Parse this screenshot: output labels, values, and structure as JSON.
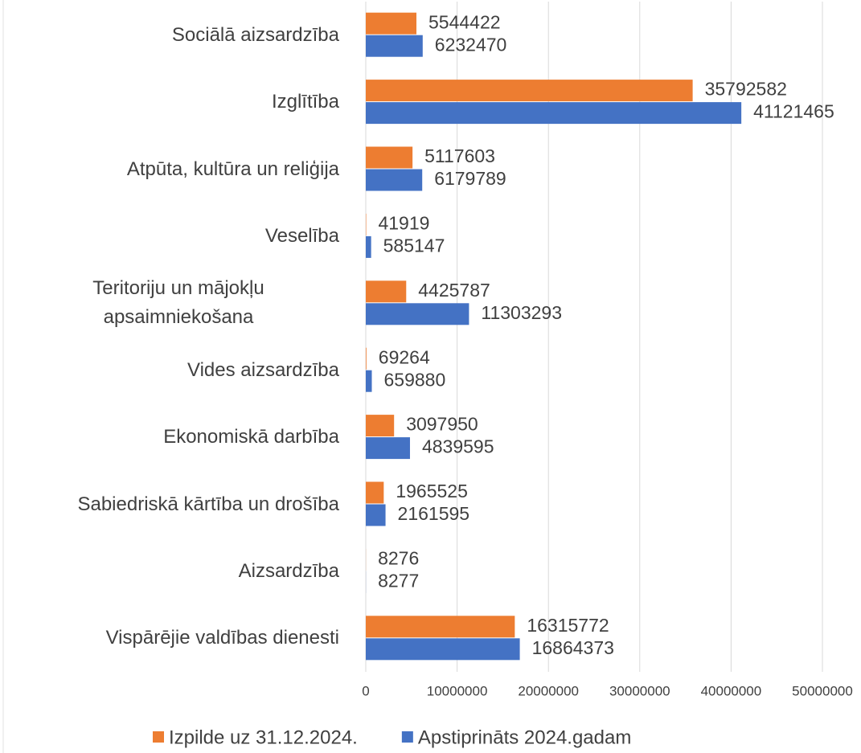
{
  "chart_data": {
    "type": "hbar",
    "categories": [
      "Sociālā aizsardzība",
      "Izglītība",
      "Atpūta, kultūra un reliģija",
      "Veselība",
      "Teritoriju un mājokļu apsaimniekošana",
      "Vides aizsardzība",
      "Ekonomiskā darbība",
      "Sabiedriskā kārtība un drošība",
      "Aizsardzība",
      "Vispārējie valdības dienesti"
    ],
    "series": [
      {
        "name": "Izpilde uz 31.12.2024.",
        "color": "#ed7d31",
        "values": [
          5544422,
          35792582,
          5117603,
          41919,
          4425787,
          69264,
          3097950,
          1965525,
          8276,
          16315772
        ]
      },
      {
        "name": "Apstiprināts 2024.gadam",
        "color": "#4472c4",
        "values": [
          6232470,
          41121465,
          6179789,
          585147,
          11303293,
          659880,
          4839595,
          2161595,
          8277,
          16864373
        ]
      }
    ],
    "xlim": [
      0,
      50000000
    ],
    "xticks": [
      0,
      10000000,
      20000000,
      30000000,
      40000000,
      50000000
    ],
    "grid": true,
    "legend": "bottom"
  }
}
